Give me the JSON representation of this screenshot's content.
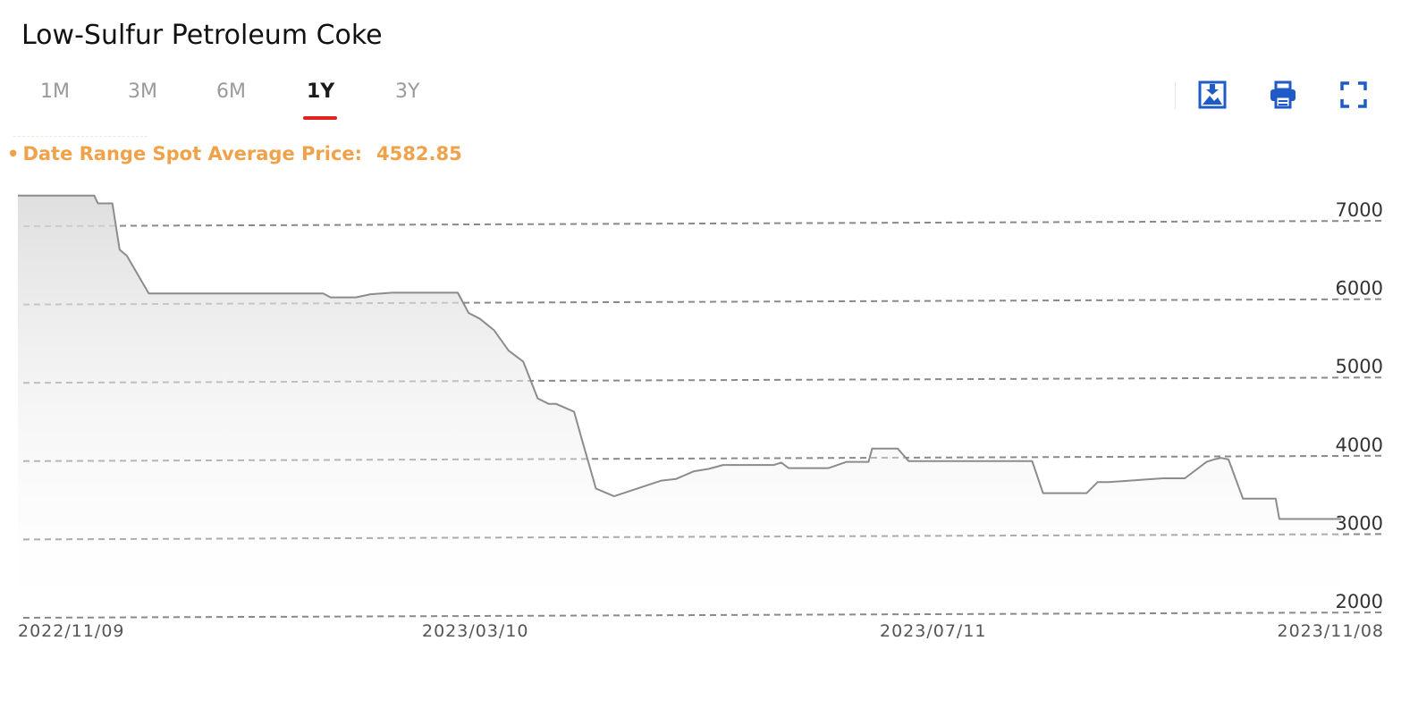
{
  "title": "Low-Sulfur Petroleum Coke",
  "tabs": [
    {
      "label": "1M",
      "active": false
    },
    {
      "label": "3M",
      "active": false
    },
    {
      "label": "6M",
      "active": false
    },
    {
      "label": "1Y",
      "active": true
    },
    {
      "label": "3Y",
      "active": false
    }
  ],
  "toolbar": {
    "icons": [
      "download-image-icon",
      "print-icon",
      "fullscreen-icon"
    ],
    "icon_color": "#1f5bc6"
  },
  "summary": {
    "label": "Date Range Spot Average Price:",
    "value": "4582.85",
    "color": "#f0a24a"
  },
  "colors": {
    "accent": "#e0241b",
    "line": "#8c8c8c",
    "grid": "#8a8a8a"
  },
  "chart_data": {
    "type": "area",
    "title": "",
    "xlabel": "",
    "ylabel": "",
    "ylim": [
      2000,
      7000
    ],
    "yticks": [
      7000,
      6000,
      5000,
      4000,
      3000,
      2000
    ],
    "xticks": [
      "2022/11/09",
      "2023/03/10",
      "2023/07/11",
      "2023/11/08"
    ],
    "grid": true,
    "x": [
      "2022/11/09",
      "2022/11/30",
      "2022/12/01",
      "2022/12/05",
      "2022/12/07",
      "2022/12/09",
      "2022/12/15",
      "2023/02/01",
      "2023/02/03",
      "2023/02/10",
      "2023/02/14",
      "2023/02/20",
      "2023/03/10",
      "2023/03/13",
      "2023/03/16",
      "2023/03/20",
      "2023/03/24",
      "2023/03/28",
      "2023/04/01",
      "2023/04/04",
      "2023/04/06",
      "2023/04/11",
      "2023/04/13",
      "2023/04/17",
      "2023/04/22",
      "2023/05/05",
      "2023/05/09",
      "2023/05/14",
      "2023/05/18",
      "2023/05/22",
      "2023/06/05",
      "2023/06/07",
      "2023/06/09",
      "2023/06/20",
      "2023/06/25",
      "2023/07/01",
      "2023/07/02",
      "2023/07/09",
      "2023/07/12",
      "2023/08/15",
      "2023/08/18",
      "2023/08/30",
      "2023/09/02",
      "2023/09/05",
      "2023/09/20",
      "2023/09/22",
      "2023/09/26",
      "2023/10/02",
      "2023/10/04",
      "2023/10/06",
      "2023/10/08",
      "2023/10/12",
      "2023/10/21",
      "2023/10/22",
      "2023/11/08"
    ],
    "values": [
      7220,
      7220,
      7120,
      7120,
      6530,
      6450,
      5970,
      5970,
      5920,
      5920,
      5960,
      5980,
      5980,
      5720,
      5650,
      5500,
      5240,
      5100,
      4630,
      4560,
      4560,
      4460,
      4130,
      3480,
      3380,
      3580,
      3600,
      3700,
      3730,
      3780,
      3780,
      3810,
      3740,
      3740,
      3820,
      3820,
      3990,
      3990,
      3830,
      3830,
      3420,
      3420,
      3560,
      3560,
      3610,
      3610,
      3610,
      3820,
      3850,
      3870,
      3850,
      3350,
      3350,
      3090,
      3090
    ],
    "series": [
      {
        "name": ""
      }
    ]
  }
}
